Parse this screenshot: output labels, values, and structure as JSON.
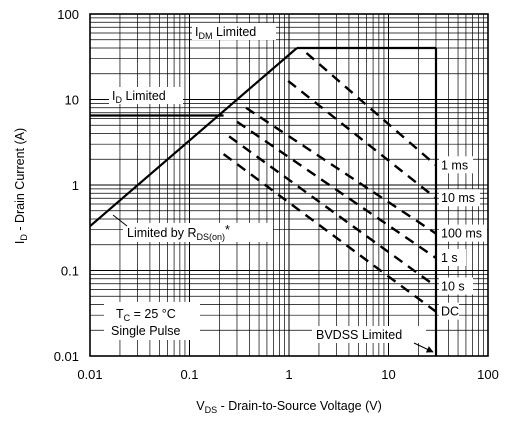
{
  "chart_data": {
    "type": "line",
    "xscale": "log",
    "yscale": "log",
    "xlim": [
      0.01,
      100
    ],
    "ylim": [
      0.01,
      100
    ],
    "grid": true,
    "xlabel": {
      "pre": "V",
      "sub": "DS",
      "post": " - Drain-to-Source Voltage (V)"
    },
    "ylabel": {
      "pre": "I",
      "sub": "D",
      "post": " - Drain Current (A)"
    },
    "x_ticks": [
      {
        "value": 0.01,
        "label": "0.01"
      },
      {
        "value": 0.1,
        "label": "0.1"
      },
      {
        "value": 1,
        "label": "1"
      },
      {
        "value": 10,
        "label": "10"
      },
      {
        "value": 100,
        "label": "100"
      }
    ],
    "y_ticks": [
      {
        "value": 0.01,
        "label": "0.01"
      },
      {
        "value": 0.1,
        "label": "0.1"
      },
      {
        "value": 1,
        "label": "1"
      },
      {
        "value": 10,
        "label": "10"
      },
      {
        "value": 100,
        "label": "100"
      }
    ],
    "boundary_lines": [
      {
        "key": "idm_limited",
        "style": "solid",
        "points": [
          [
            1.2,
            40
          ],
          [
            30,
            40
          ]
        ]
      },
      {
        "key": "id_limited",
        "style": "solid",
        "points": [
          [
            0.01,
            6.5
          ],
          [
            0.22,
            6.5
          ]
        ]
      },
      {
        "key": "rds_limited",
        "style": "solid",
        "points": [
          [
            0.01,
            0.33
          ],
          [
            1.2,
            40
          ]
        ]
      },
      {
        "key": "bvdss_limited",
        "style": "solid",
        "points": [
          [
            30,
            40
          ],
          [
            30,
            0.01
          ]
        ]
      }
    ],
    "series": [
      {
        "name": "1 ms",
        "style": "dashed",
        "points": [
          [
            1.5,
            35
          ],
          [
            30,
            1.7
          ]
        ]
      },
      {
        "name": "10 ms",
        "style": "dashed",
        "points": [
          [
            0.98,
            16.5
          ],
          [
            30,
            0.7
          ]
        ]
      },
      {
        "name": "100 ms",
        "style": "dashed",
        "points": [
          [
            0.37,
            8
          ],
          [
            30,
            0.27
          ]
        ]
      },
      {
        "name": "1 s",
        "style": "dashed",
        "points": [
          [
            0.3,
            5.5
          ],
          [
            30,
            0.14
          ]
        ]
      },
      {
        "name": "10 s",
        "style": "dashed",
        "points": [
          [
            0.25,
            3.7
          ],
          [
            30,
            0.065
          ]
        ]
      },
      {
        "name": "DC",
        "style": "dashed",
        "points": [
          [
            0.22,
            2.3
          ],
          [
            30,
            0.033
          ]
        ]
      }
    ],
    "annotations": {
      "idm_limited": {
        "pre": "I",
        "sub": "DM",
        "post": " Limited"
      },
      "id_limited": {
        "pre": "I",
        "sub": "D",
        "post": " Limited"
      },
      "rds_limited": {
        "pre": "Limited by R",
        "sub": "DS(on)",
        "post": "*"
      },
      "bvdss_limited": {
        "text": "BVDSS Limited"
      },
      "conditions": {
        "line1": {
          "pre": "T",
          "sub": "C",
          "post": " = 25 °C"
        },
        "line2": "Single Pulse"
      }
    }
  }
}
